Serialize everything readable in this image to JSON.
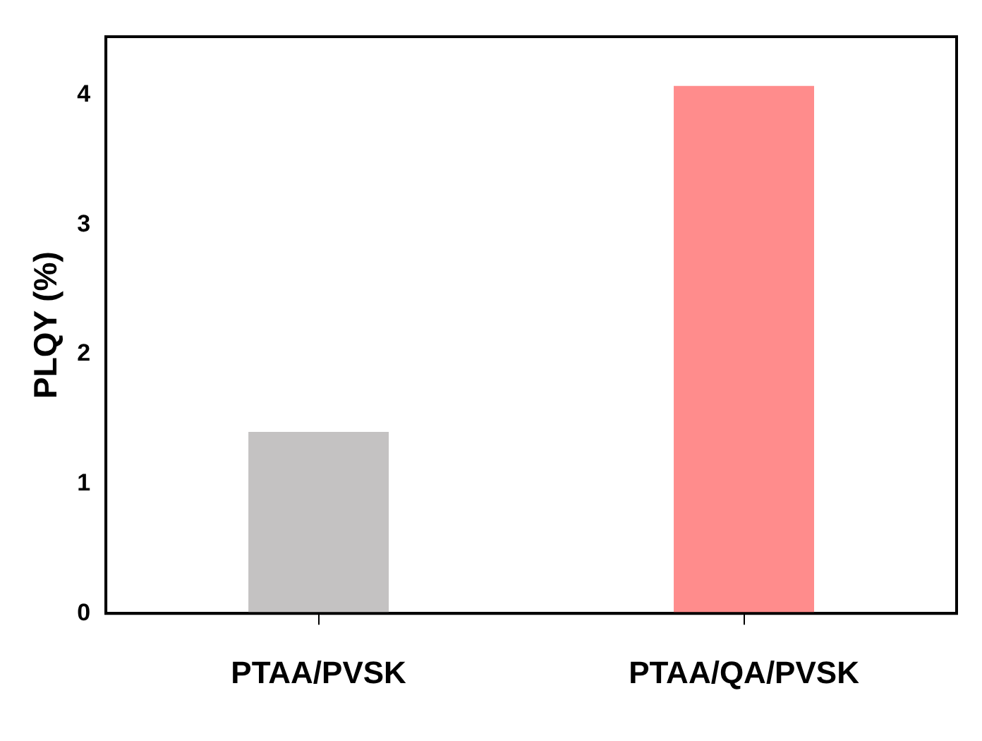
{
  "chart_data": {
    "type": "bar",
    "ylabel": "PLQY (%)",
    "categories": [
      "PTAA/PVSK",
      "PTAA/QA/PVSK"
    ],
    "values": [
      1.4,
      4.07
    ],
    "colors": [
      "#c4c2c2",
      "#ff8c8c"
    ],
    "ylim": [
      0,
      4.45
    ],
    "yticks": [
      0,
      1,
      2,
      3,
      4
    ],
    "grid": false,
    "legend": false
  }
}
